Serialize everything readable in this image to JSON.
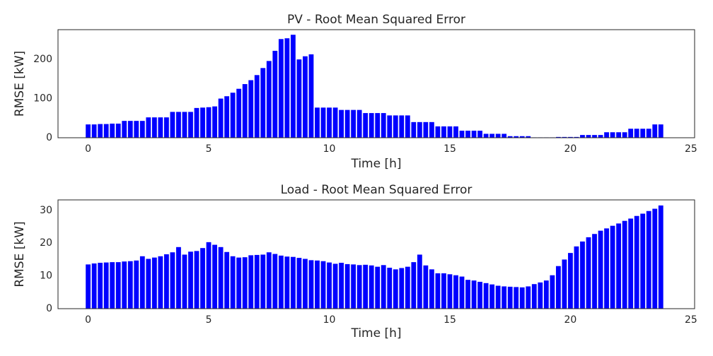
{
  "chart_data": [
    {
      "type": "bar",
      "title": "PV - Root Mean Squared Error",
      "x_label": "Time [h]",
      "y_label": "RMSE [kW]",
      "color": "#0000ff",
      "x": [
        0,
        0.25,
        0.5,
        0.75,
        1,
        1.25,
        1.5,
        1.75,
        2,
        2.25,
        2.5,
        2.75,
        3,
        3.25,
        3.5,
        3.75,
        4,
        4.25,
        4.5,
        4.75,
        5,
        5.25,
        5.5,
        5.75,
        6,
        6.25,
        6.5,
        6.75,
        7,
        7.25,
        7.5,
        7.75,
        8,
        8.25,
        8.5,
        8.75,
        9,
        9.25,
        9.5,
        9.75,
        10,
        10.25,
        10.5,
        10.75,
        11,
        11.25,
        11.5,
        11.75,
        12,
        12.25,
        12.5,
        12.75,
        13,
        13.25,
        13.5,
        13.75,
        14,
        14.25,
        14.5,
        14.75,
        15,
        15.25,
        15.5,
        15.75,
        16,
        16.25,
        16.5,
        16.75,
        17,
        17.25,
        17.5,
        17.75,
        18,
        18.25,
        18.5,
        18.75,
        19,
        19.25,
        19.5,
        19.75,
        20,
        20.25,
        20.5,
        20.75,
        21,
        21.25,
        21.5,
        21.75,
        22,
        22.25,
        22.5,
        22.75,
        23,
        23.25,
        23.5,
        23.75
      ],
      "values": [
        34,
        34,
        35,
        35,
        36,
        36,
        43,
        43,
        43,
        43,
        52,
        52,
        52,
        52,
        66,
        66,
        66,
        66,
        76,
        77,
        78,
        80,
        100,
        106,
        115,
        125,
        137,
        147,
        160,
        178,
        196,
        222,
        252,
        254,
        263,
        200,
        208,
        213,
        77,
        77,
        77,
        77,
        71,
        71,
        71,
        71,
        63,
        63,
        63,
        63,
        57,
        57,
        57,
        57,
        40,
        40,
        40,
        40,
        29,
        29,
        29,
        29,
        18,
        18,
        18,
        18,
        10,
        10,
        10,
        10,
        4,
        4,
        4,
        4,
        1,
        1,
        1,
        1,
        2,
        2,
        2,
        2,
        7,
        7,
        7,
        7,
        14,
        14,
        14,
        14,
        23,
        23,
        23,
        23,
        34,
        34
      ],
      "xlim": [
        -1.25,
        25.15
      ],
      "xticks": [
        0,
        5,
        10,
        15,
        20,
        25
      ],
      "ylim": [
        0,
        276
      ],
      "yticks": [
        0,
        100,
        200
      ]
    },
    {
      "type": "bar",
      "title": "Load - Root Mean Squared Error",
      "x_label": "Time [h]",
      "y_label": "RMSE [kW]",
      "color": "#0000ff",
      "x": [
        0,
        0.25,
        0.5,
        0.75,
        1,
        1.25,
        1.5,
        1.75,
        2,
        2.25,
        2.5,
        2.75,
        3,
        3.25,
        3.5,
        3.75,
        4,
        4.25,
        4.5,
        4.75,
        5,
        5.25,
        5.5,
        5.75,
        6,
        6.25,
        6.5,
        6.75,
        7,
        7.25,
        7.5,
        7.75,
        8,
        8.25,
        8.5,
        8.75,
        9,
        9.25,
        9.5,
        9.75,
        10,
        10.25,
        10.5,
        10.75,
        11,
        11.25,
        11.5,
        11.75,
        12,
        12.25,
        12.5,
        12.75,
        13,
        13.25,
        13.5,
        13.75,
        14,
        14.25,
        14.5,
        14.75,
        15,
        15.25,
        15.5,
        15.75,
        16,
        16.25,
        16.5,
        16.75,
        17,
        17.25,
        17.5,
        17.75,
        18,
        18.25,
        18.5,
        18.75,
        19,
        19.25,
        19.5,
        19.75,
        20,
        20.25,
        20.5,
        20.75,
        21,
        21.25,
        21.5,
        21.75,
        22,
        22.25,
        22.5,
        22.75,
        23,
        23.25,
        23.5,
        23.75
      ],
      "values": [
        13.5,
        13.8,
        14.0,
        14.1,
        14.2,
        14.2,
        14.4,
        14.5,
        14.7,
        16.0,
        15.2,
        15.6,
        16.0,
        16.6,
        17.2,
        18.8,
        16.5,
        17.4,
        17.6,
        18.5,
        20.3,
        19.5,
        18.8,
        17.3,
        16.0,
        15.6,
        15.7,
        16.3,
        16.4,
        16.5,
        17.2,
        16.7,
        16.2,
        15.9,
        15.8,
        15.5,
        15.2,
        14.8,
        14.7,
        14.5,
        14.1,
        13.7,
        14.0,
        13.6,
        13.5,
        13.3,
        13.4,
        13.2,
        12.8,
        13.3,
        12.5,
        12.0,
        12.4,
        12.8,
        14.2,
        16.5,
        13.2,
        12.0,
        10.8,
        10.8,
        10.5,
        10.2,
        9.8,
        8.8,
        8.6,
        8.2,
        7.8,
        7.4,
        7.0,
        6.8,
        6.7,
        6.6,
        6.5,
        6.8,
        7.5,
        8.0,
        8.6,
        10.2,
        13.0,
        15.0,
        17.0,
        19.0,
        20.5,
        21.8,
        22.8,
        23.8,
        24.5,
        25.3,
        26.0,
        26.8,
        27.5,
        28.3,
        29.0,
        29.8,
        30.5,
        31.5
      ],
      "xlim": [
        -1.25,
        25.15
      ],
      "xticks": [
        0,
        5,
        10,
        15,
        20,
        25
      ],
      "ylim": [
        0,
        33.2
      ],
      "yticks": [
        0,
        10,
        20,
        30
      ]
    }
  ]
}
